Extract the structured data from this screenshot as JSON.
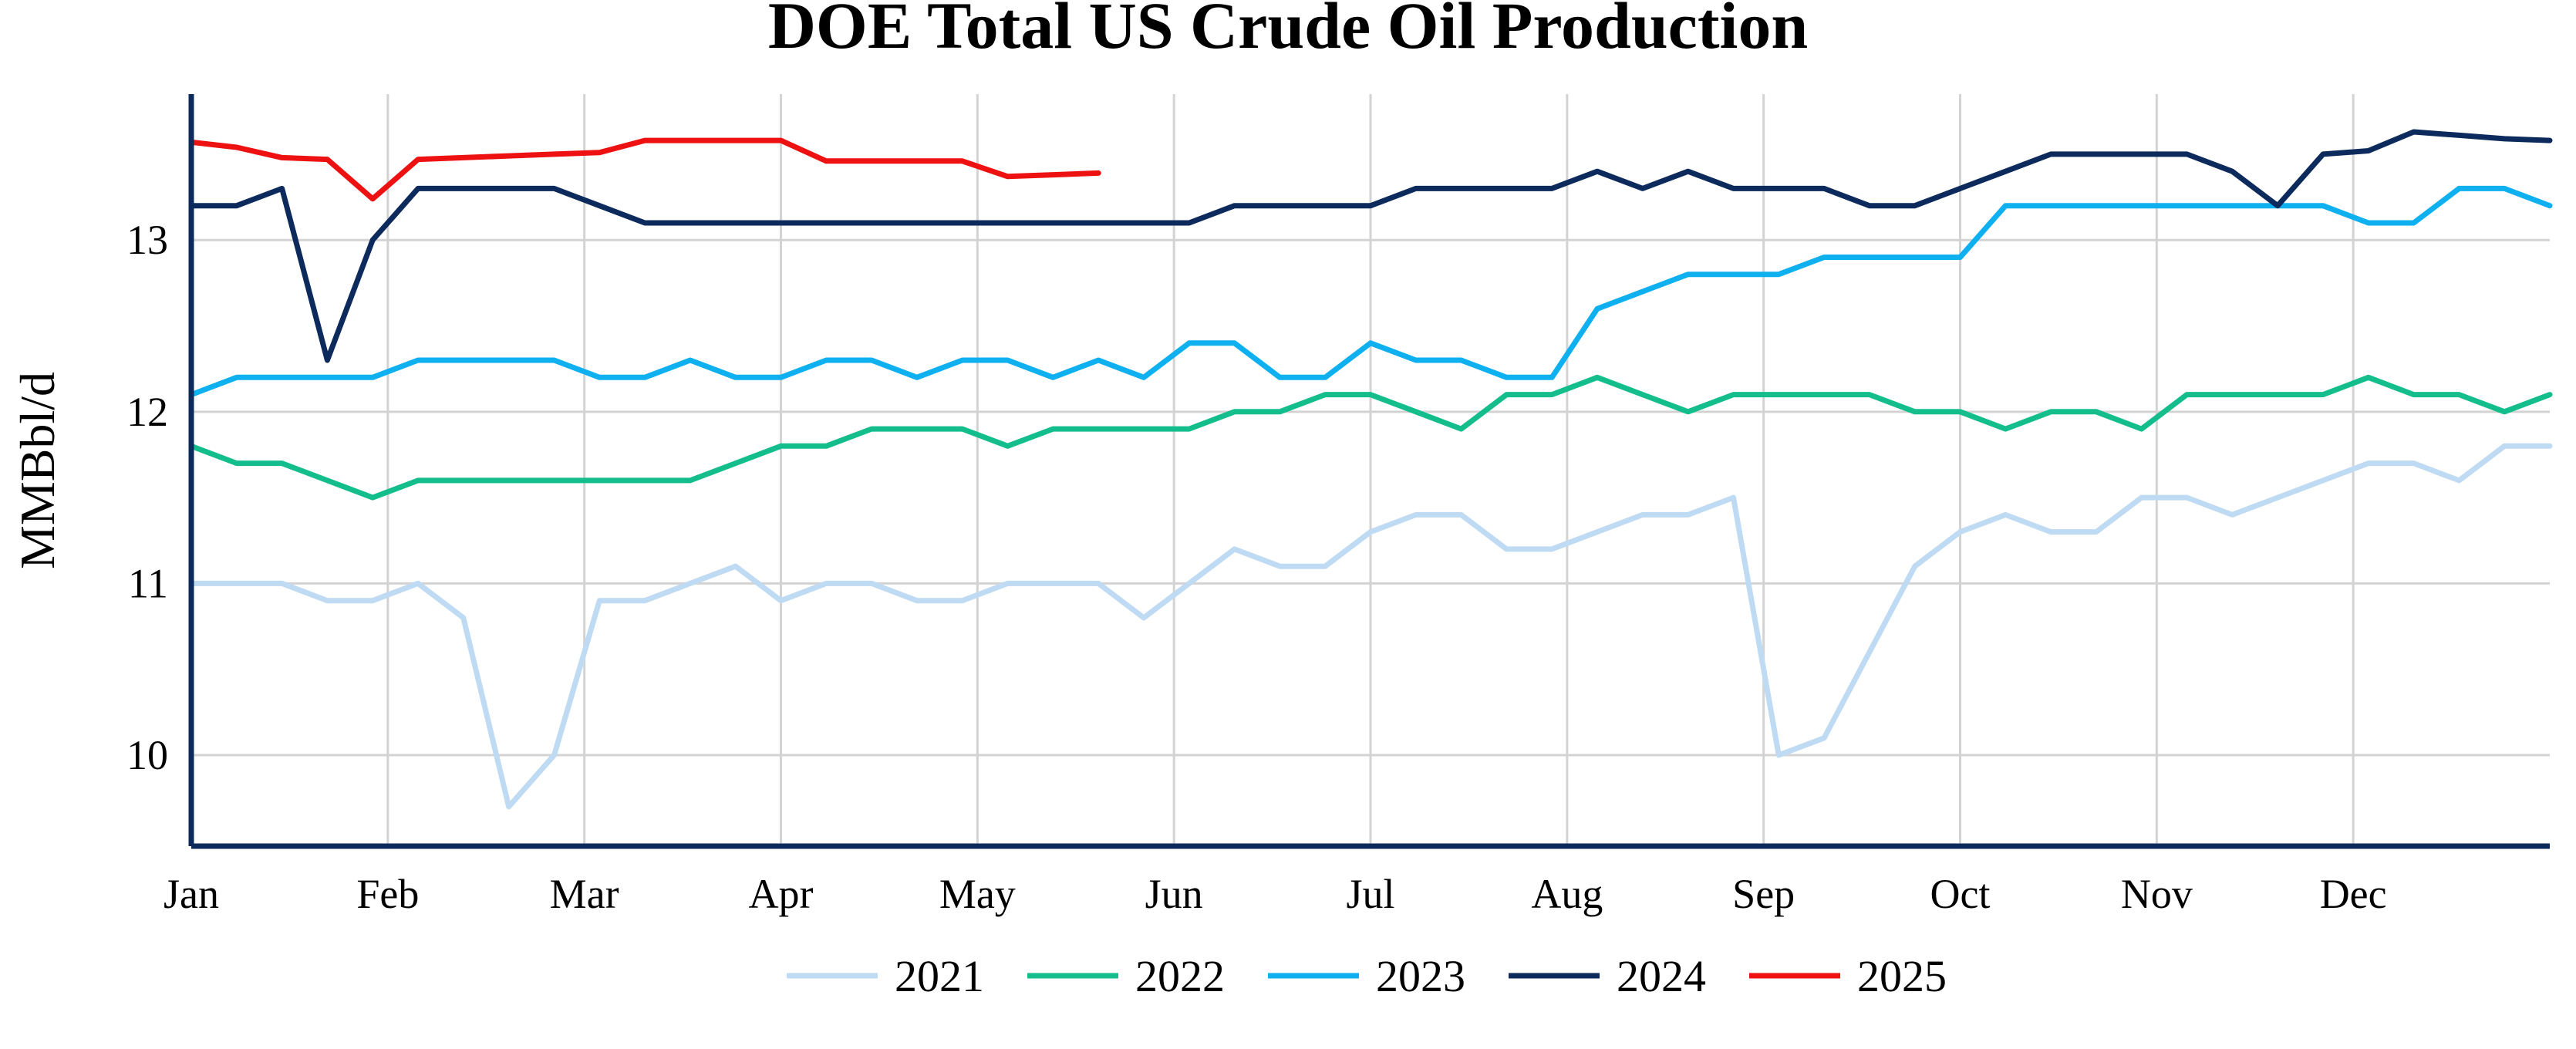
{
  "chart_data": {
    "type": "line",
    "title": "DOE Total US Crude Oil Production",
    "xlabel": "",
    "ylabel": "MMBbl/d",
    "x_ticks": [
      "Jan",
      "Feb",
      "Mar",
      "Apr",
      "May",
      "Jun",
      "Jul",
      "Aug",
      "Sep",
      "Oct",
      "Nov",
      "Dec"
    ],
    "x_unit": "week of year",
    "xlim": [
      1,
      53
    ],
    "ylim": [
      9.47,
      13.85
    ],
    "y_ticks": [
      10,
      11,
      12,
      13
    ],
    "grid": true,
    "legend_position": "bottom",
    "series": [
      {
        "name": "2021",
        "color": "#bfdaf3",
        "x": [
          1,
          2,
          3,
          4,
          5,
          6,
          7,
          8,
          9,
          10,
          11,
          12,
          13,
          14,
          15,
          16,
          17,
          18,
          19,
          20,
          21,
          22,
          23,
          24,
          25,
          26,
          27,
          28,
          29,
          30,
          31,
          32,
          33,
          34,
          35,
          36,
          37,
          38,
          39,
          40,
          41,
          42,
          43,
          44,
          45,
          46,
          47,
          48,
          49,
          50,
          51,
          52,
          53
        ],
        "y": [
          11.0,
          11.0,
          11.0,
          10.9,
          10.9,
          11.0,
          10.8,
          9.7,
          10.0,
          10.9,
          10.9,
          11.0,
          11.1,
          10.9,
          11.0,
          11.0,
          10.9,
          10.9,
          11.0,
          11.0,
          11.0,
          10.8,
          11.0,
          11.2,
          11.1,
          11.1,
          11.3,
          11.4,
          11.4,
          11.2,
          11.2,
          11.3,
          11.4,
          11.4,
          11.5,
          10.0,
          10.1,
          10.6,
          11.1,
          11.3,
          11.4,
          11.3,
          11.3,
          11.5,
          11.5,
          11.4,
          11.5,
          11.6,
          11.7,
          11.7,
          11.6,
          11.8,
          11.8
        ]
      },
      {
        "name": "2022",
        "color": "#14be8c",
        "x": [
          1,
          2,
          3,
          4,
          5,
          6,
          7,
          8,
          9,
          10,
          11,
          12,
          13,
          14,
          15,
          16,
          17,
          18,
          19,
          20,
          21,
          22,
          23,
          24,
          25,
          26,
          27,
          28,
          29,
          30,
          31,
          32,
          33,
          34,
          35,
          36,
          37,
          38,
          39,
          40,
          41,
          42,
          43,
          44,
          45,
          46,
          47,
          48,
          49,
          50,
          51,
          52,
          53
        ],
        "y": [
          11.8,
          11.7,
          11.7,
          11.6,
          11.5,
          11.6,
          11.6,
          11.6,
          11.6,
          11.6,
          11.6,
          11.6,
          11.7,
          11.8,
          11.8,
          11.9,
          11.9,
          11.9,
          11.8,
          11.9,
          11.9,
          11.9,
          11.9,
          12.0,
          12.0,
          12.1,
          12.1,
          12.0,
          11.9,
          12.1,
          12.1,
          12.2,
          12.1,
          12.0,
          12.1,
          12.1,
          12.1,
          12.1,
          12.0,
          12.0,
          11.9,
          12.0,
          12.0,
          11.9,
          12.1,
          12.1,
          12.1,
          12.1,
          12.2,
          12.1,
          12.1,
          12.0,
          12.1
        ]
      },
      {
        "name": "2023",
        "color": "#0eb0f0",
        "x": [
          1,
          2,
          3,
          4,
          5,
          6,
          7,
          8,
          9,
          10,
          11,
          12,
          13,
          14,
          15,
          16,
          17,
          18,
          19,
          20,
          21,
          22,
          23,
          24,
          25,
          26,
          27,
          28,
          29,
          30,
          31,
          32,
          33,
          34,
          35,
          36,
          37,
          38,
          39,
          40,
          41,
          42,
          43,
          44,
          45,
          46,
          47,
          48,
          49,
          50,
          51,
          52,
          53
        ],
        "y": [
          12.1,
          12.2,
          12.2,
          12.2,
          12.2,
          12.3,
          12.3,
          12.3,
          12.3,
          12.2,
          12.2,
          12.3,
          12.2,
          12.2,
          12.3,
          12.3,
          12.2,
          12.3,
          12.3,
          12.2,
          12.3,
          12.2,
          12.4,
          12.4,
          12.2,
          12.2,
          12.4,
          12.3,
          12.3,
          12.2,
          12.2,
          12.6,
          12.7,
          12.8,
          12.8,
          12.8,
          12.9,
          12.9,
          12.9,
          12.9,
          13.2,
          13.2,
          13.2,
          13.2,
          13.2,
          13.2,
          13.2,
          13.2,
          13.1,
          13.1,
          13.3,
          13.3,
          13.2
        ]
      },
      {
        "name": "2024",
        "color": "#0c2a5b",
        "x": [
          1,
          2,
          3,
          4,
          5,
          6,
          7,
          8,
          9,
          10,
          11,
          12,
          13,
          14,
          15,
          16,
          17,
          18,
          19,
          20,
          21,
          22,
          23,
          24,
          25,
          26,
          27,
          28,
          29,
          30,
          31,
          32,
          33,
          34,
          35,
          36,
          37,
          38,
          39,
          40,
          41,
          42,
          43,
          44,
          45,
          46,
          47,
          48,
          49,
          50,
          51,
          52,
          53
        ],
        "y": [
          13.2,
          13.2,
          13.3,
          12.3,
          13.0,
          13.3,
          13.3,
          13.3,
          13.3,
          13.2,
          13.1,
          13.1,
          13.1,
          13.1,
          13.1,
          13.1,
          13.1,
          13.1,
          13.1,
          13.1,
          13.1,
          13.1,
          13.1,
          13.2,
          13.2,
          13.2,
          13.2,
          13.3,
          13.3,
          13.3,
          13.3,
          13.4,
          13.3,
          13.4,
          13.3,
          13.3,
          13.3,
          13.2,
          13.2,
          13.3,
          13.4,
          13.5,
          13.5,
          13.5,
          13.5,
          13.4,
          13.2,
          13.5,
          13.52,
          13.63,
          13.61,
          13.59,
          13.58
        ]
      },
      {
        "name": "2025",
        "color": "#ee1111",
        "x": [
          1,
          2,
          3,
          4,
          5,
          6,
          7,
          8,
          9,
          10,
          11,
          12,
          13,
          14,
          15,
          16,
          17,
          18,
          19,
          20,
          21
        ],
        "y": [
          13.57,
          13.54,
          13.48,
          13.47,
          13.24,
          13.47,
          13.48,
          13.49,
          13.5,
          13.51,
          13.58,
          13.58,
          13.58,
          13.58,
          13.46,
          13.46,
          13.46,
          13.46,
          13.37,
          13.38,
          13.39
        ]
      }
    ]
  }
}
